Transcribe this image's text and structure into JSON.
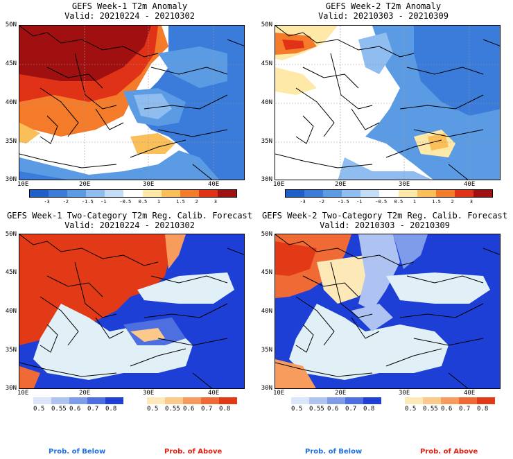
{
  "panels": [
    {
      "title": "GEFS Week-1 T2m Anomaly",
      "valid": "Valid: 20210224 - 20210302"
    },
    {
      "title": "GEFS Week-2 T2m Anomaly",
      "valid": "Valid: 20210303 - 20210309"
    },
    {
      "title": "GEFS Week-1 Two-Category T2m Reg. Calib. Forecast",
      "valid": "Valid: 20210224 - 20210302"
    },
    {
      "title": "GEFS Week-2 Two-Category T2m Reg. Calib. Forecast",
      "valid": "Valid: 20210303 - 20210309"
    }
  ],
  "lat_labels": [
    "50N",
    "45N",
    "40N",
    "35N",
    "30N"
  ],
  "lon_labels": [
    "10E",
    "20E",
    "30E",
    "40E"
  ],
  "anomaly_colorbar": {
    "labels": [
      "-3",
      "-2",
      "-1.5",
      "-1",
      "-0.5",
      "0.5",
      "1",
      "1.5",
      "2",
      "3"
    ],
    "colors": [
      "#1f5fc9",
      "#3b7bd9",
      "#5b9be3",
      "#8fbdf0",
      "#c3ddf7",
      "#ffffff",
      "#ffe9a8",
      "#fbbf5a",
      "#f47b2a",
      "#e03217",
      "#a01010"
    ]
  },
  "prob_below": {
    "labels": [
      "0.5",
      "0.55",
      "0.6",
      "0.7",
      "0.8"
    ],
    "colors": [
      "#dce6fb",
      "#aec3f2",
      "#7f9cea",
      "#4d6fe0",
      "#1e3fd6"
    ],
    "caption": "Prob. of Below"
  },
  "prob_above": {
    "labels": [
      "0.5",
      "0.55",
      "0.6",
      "0.7",
      "0.8"
    ],
    "colors": [
      "#fde8b8",
      "#fbc98a",
      "#f89c5e",
      "#f06a35",
      "#e23a17"
    ],
    "caption": "Prob. of Above"
  }
}
